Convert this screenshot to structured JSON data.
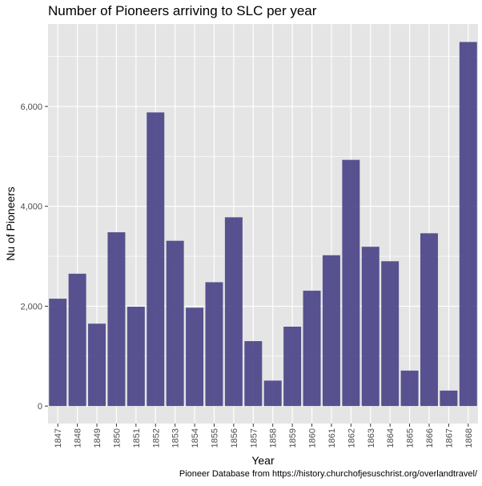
{
  "chart_data": {
    "type": "bar",
    "title": "Number of Pioneers arriving to SLC per year",
    "xlabel": "Year",
    "ylabel": "Nu of Pioneers",
    "caption": "Pioneer Database from https://history.churchofjesuschrist.org/overlandtravel/",
    "categories": [
      "1847",
      "1848",
      "1849",
      "1850",
      "1851",
      "1852",
      "1853",
      "1854",
      "1855",
      "1856",
      "1857",
      "1858",
      "1859",
      "1860",
      "1861",
      "1862",
      "1863",
      "1864",
      "1865",
      "1866",
      "1867",
      "1868"
    ],
    "values": [
      2150,
      2650,
      1650,
      3480,
      1990,
      5880,
      3310,
      1970,
      2480,
      3780,
      1300,
      510,
      1590,
      2310,
      3020,
      4930,
      3190,
      2900,
      710,
      3460,
      310,
      7290
    ],
    "ylim": [
      -350,
      7650
    ],
    "yticks": [
      0,
      2000,
      4000,
      6000
    ],
    "ytick_labels": [
      "0",
      "2,000",
      "4,000",
      "6,000"
    ],
    "grid": true,
    "bar_color": "#4b4488",
    "panel_color": "#e5e5e5",
    "grid_color": "#ffffff"
  }
}
